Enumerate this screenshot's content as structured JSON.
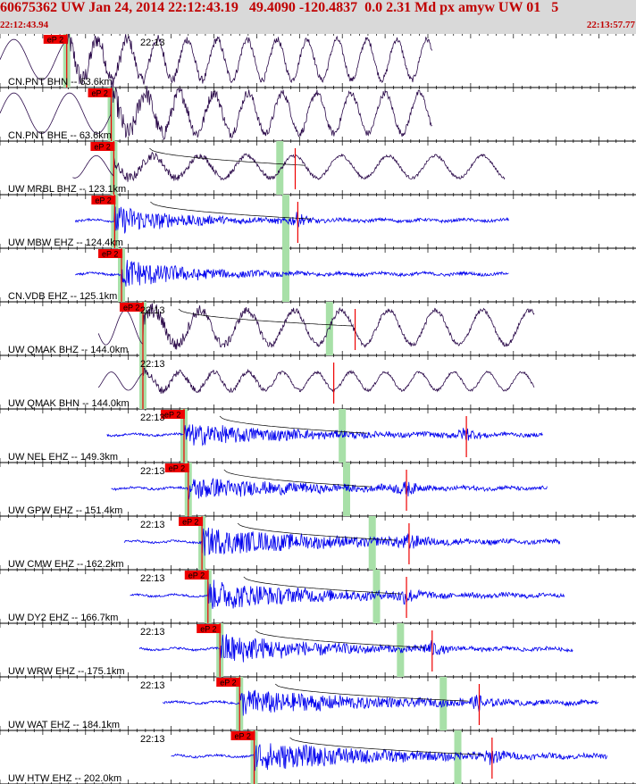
{
  "header": {
    "title": "60675362 UW Jan 24, 2014 22:12:43.19   49.4090 -120.4837  0.0 2.31 Md px amyw UW 01   5",
    "start_time": "22:12:43.94",
    "end_time": "22:13:57.77"
  },
  "colors": {
    "header_bg": "#d9d9d9",
    "header_text": "#c00000",
    "trace_broadband": "#2b0a4a",
    "trace_short_period": "#0000ee",
    "pick_box": "#ee0000",
    "coda_band": "#a8e0a8",
    "grid": "#000000"
  },
  "chart_data": {
    "type": "line",
    "title": "60675362 UW Jan 24, 2014 22:12:43.19   49.4090 -120.4837  0.0 2.31 Md px amyw UW 01   5",
    "time_start": "22:12:43.94",
    "time_end": "22:13:57.77",
    "minute_label": "22:13",
    "pick_label": "eP 2",
    "traces": [
      {
        "label": "CN.PNT BHN -- 63.6km",
        "kind": "broadband",
        "show_minute_label": true,
        "p_sec": 7.8,
        "pick_label_shown": true,
        "coda_sec": [],
        "s_sec": null,
        "dist_km": 63.6,
        "x_start": 0.0,
        "x_end": 50.5,
        "amp": 1.0,
        "period_pre": 6.5,
        "period_post": 3.5,
        "hf_amp": 0.4,
        "hf_duration": 8,
        "curve": false
      },
      {
        "label": "CN.PNT BHE -- 63.6km",
        "kind": "broadband",
        "show_minute_label": false,
        "p_sec": 13.0,
        "pick_label_shown": true,
        "coda_sec": [],
        "s_sec": null,
        "dist_km": 63.6,
        "x_start": 0.0,
        "x_end": 50.5,
        "amp": 1.0,
        "period_pre": 6.5,
        "period_post": 4.0,
        "hf_amp": 0.45,
        "hf_duration": 8,
        "curve": false
      },
      {
        "label": "UW MRBL BHZ -- 123.1km",
        "kind": "broadband",
        "show_minute_label": false,
        "p_sec": 13.3,
        "pick_label_shown": true,
        "coda_sec": [
          32.7
        ],
        "s_sec": 34.5,
        "dist_km": 123.1,
        "x_start": 8.5,
        "x_end": 59.0,
        "amp": 0.55,
        "period_pre": 5.0,
        "period_post": 5.5,
        "hf_amp": 0.35,
        "hf_duration": 10,
        "curve": true
      },
      {
        "label": "UW MBW EHZ -- 124.4km",
        "kind": "short",
        "show_minute_label": false,
        "p_sec": 13.4,
        "pick_label_shown": true,
        "coda_sec": [
          33.4
        ],
        "s_sec": 34.8,
        "dist_km": 124.4,
        "x_start": 8.8,
        "x_end": 59.5,
        "amp": 0.8,
        "hf_amp": 0.8,
        "hf_duration": 7,
        "curve": true
      },
      {
        "label": "CN.VDB EHZ -- 125.1km",
        "kind": "short",
        "show_minute_label": false,
        "p_sec": 14.2,
        "pick_label_shown": true,
        "coda_sec": [
          33.4
        ],
        "s_sec": null,
        "dist_km": 125.1,
        "x_start": 8.8,
        "x_end": 59.5,
        "amp": 0.8,
        "hf_amp": 0.85,
        "hf_duration": 7,
        "curve": false
      },
      {
        "label": "UW QMAK BHZ -- 144.0km",
        "kind": "broadband",
        "show_minute_label": true,
        "p_sec": 16.7,
        "pick_label_shown": true,
        "coda_sec": [
          38.5
        ],
        "s_sec": 41.5,
        "dist_km": 144.0,
        "x_start": 11.5,
        "x_end": 62.5,
        "amp": 0.85,
        "period_pre": 4.5,
        "period_post": 5.5,
        "hf_amp": 0.35,
        "hf_duration": 9,
        "curve": true
      },
      {
        "label": "UW QMAK BHN -- 144.0km",
        "kind": "broadband",
        "show_minute_label": true,
        "p_sec": 16.7,
        "pick_label_shown": false,
        "coda_sec": [],
        "s_sec": 39.0,
        "dist_km": 144.0,
        "x_start": 11.5,
        "x_end": 62.5,
        "amp": 0.45,
        "period_pre": 4.0,
        "period_post": 4.0,
        "hf_amp": 0.35,
        "hf_duration": 10,
        "curve": false
      },
      {
        "label": "UW NEL EHZ -- 149.3km",
        "kind": "short",
        "show_minute_label": true,
        "p_sec": 21.5,
        "pick_label_shown": true,
        "coda_sec": [
          40.0
        ],
        "s_sec": 54.5,
        "dist_km": 149.3,
        "x_start": 12.5,
        "x_end": 63.5,
        "amp": 0.8,
        "hf_amp": 0.6,
        "hf_duration": 12,
        "curve": true
      },
      {
        "label": "UW GPW EHZ -- 151.4km",
        "kind": "short",
        "show_minute_label": true,
        "p_sec": 22.0,
        "pick_label_shown": true,
        "coda_sec": [
          40.5
        ],
        "s_sec": 47.5,
        "dist_km": 151.4,
        "x_start": 13.0,
        "x_end": 64.0,
        "amp": 0.8,
        "hf_amp": 0.6,
        "hf_duration": 12,
        "curve": true
      },
      {
        "label": "UW CMW EHZ -- 162.2km",
        "kind": "short",
        "show_minute_label": true,
        "p_sec": 23.6,
        "pick_label_shown": true,
        "coda_sec": [
          43.5
        ],
        "s_sec": 47.8,
        "dist_km": 162.2,
        "x_start": 14.5,
        "x_end": 65.5,
        "amp": 0.8,
        "hf_amp": 0.75,
        "hf_duration": 14,
        "curve": true
      },
      {
        "label": "UW DY2 EHZ -- 166.7km",
        "kind": "short",
        "show_minute_label": true,
        "p_sec": 24.3,
        "pick_label_shown": true,
        "coda_sec": [
          44.0
        ],
        "s_sec": 47.5,
        "dist_km": 166.7,
        "x_start": 15.2,
        "x_end": 66.0,
        "amp": 0.8,
        "hf_amp": 0.8,
        "hf_duration": 12,
        "curve": true
      },
      {
        "label": "UW WRW EHZ -- 175.1km",
        "kind": "short",
        "show_minute_label": true,
        "p_sec": 25.7,
        "pick_label_shown": true,
        "coda_sec": [
          46.8
        ],
        "s_sec": 50.5,
        "dist_km": 175.1,
        "x_start": 16.3,
        "x_end": 67.0,
        "amp": 0.8,
        "hf_amp": 0.85,
        "hf_duration": 10,
        "curve": true
      },
      {
        "label": "UW WAT EHZ -- 184.1km",
        "kind": "short",
        "show_minute_label": true,
        "p_sec": 28.0,
        "pick_label_shown": true,
        "coda_sec": [
          51.8
        ],
        "s_sec": 56.0,
        "dist_km": 184.1,
        "x_start": 19.0,
        "x_end": 70.0,
        "amp": 0.8,
        "hf_amp": 0.7,
        "hf_duration": 14,
        "curve": true
      },
      {
        "label": "UW HTW EHZ -- 202.0km",
        "kind": "short",
        "show_minute_label": true,
        "p_sec": 29.7,
        "pick_label_shown": true,
        "coda_sec": [
          53.5
        ],
        "s_sec": 57.5,
        "dist_km": 202.0,
        "x_start": 20.0,
        "x_end": 71.0,
        "amp": 0.8,
        "hf_amp": 0.8,
        "hf_duration": 14,
        "curve": true
      }
    ]
  }
}
